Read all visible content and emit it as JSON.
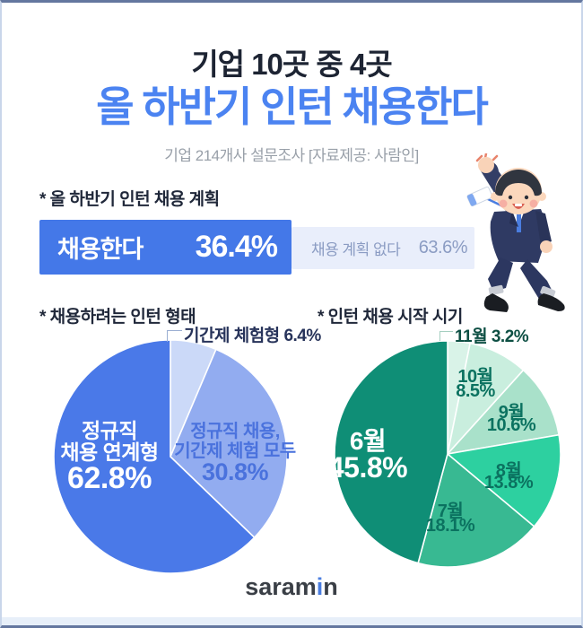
{
  "header": {
    "title_line1": "기업 10곳 중 4곳",
    "title_line2": "올 하반기 인턴 채용한다",
    "subtitle": "기업 214개사 설문조사 [자료제공: 사람인]"
  },
  "footer": {
    "logo_part1": "saram",
    "logo_part2": "i",
    "logo_part3": "n"
  },
  "colors": {
    "accent_blue": "#4b83f1",
    "bar_yes": "#4478e8",
    "bar_no_bg": "#e9eefb",
    "bar_no_text": "#8b9cc3",
    "title_dark": "#1d2433",
    "green_dark": "#0f8e76"
  },
  "chart_data": [
    {
      "type": "bar",
      "title": "* 올 하반기 인턴 채용 계획",
      "categories": [
        "채용한다",
        "채용 계획 없다"
      ],
      "values": [
        36.4,
        63.6
      ],
      "value_labels": [
        "36.4%",
        "63.6%"
      ],
      "colors": [
        "#4478e8",
        "#e9eefb"
      ]
    },
    {
      "type": "pie",
      "title": "* 채용하려는 인턴 형태",
      "note": "slices listed clockwise starting at 12 o'clock",
      "slices": [
        {
          "label": "기간제 체험형",
          "value": 6.4,
          "color": "#cbd9f8"
        },
        {
          "label": "정규직 채용, 기간제 체험 모두",
          "value": 30.8,
          "color": "#92acf0"
        },
        {
          "label": "정규직 채용 연계형",
          "value": 62.8,
          "color": "#4a79e8"
        }
      ],
      "labels": {
        "callout": "기간제 체험형  6.4%",
        "main_line1": "정규직",
        "main_line2": "채용 연계형",
        "main_pct": "62.8%",
        "side_line1": "정규직 채용,",
        "side_line2": "기간제 체험 모두",
        "side_pct": "30.8%"
      }
    },
    {
      "type": "pie",
      "title": "* 인턴 채용 시작 시기",
      "note": "slices listed clockwise starting at 12 o'clock",
      "slices": [
        {
          "label": "11월",
          "value": 3.2,
          "color": "#d9f3e8"
        },
        {
          "label": "10월",
          "value": 8.5,
          "color": "#c9eede"
        },
        {
          "label": "9월",
          "value": 10.6,
          "color": "#a9e1ca"
        },
        {
          "label": "8월",
          "value": 13.8,
          "color": "#2dd0a0"
        },
        {
          "label": "7월",
          "value": 18.1,
          "color": "#38b992"
        },
        {
          "label": "6월",
          "value": 45.8,
          "color": "#0f8e76"
        }
      ],
      "labels": {
        "callout": "11월  3.2%",
        "m10": "10월",
        "p10": "8.5%",
        "m9": "9월",
        "p9": "10.6%",
        "m8": "8월",
        "p8": "13.8%",
        "m7": "7월",
        "p7": "18.1%",
        "center_month": "6월",
        "center_pct": "45.8%"
      }
    }
  ]
}
